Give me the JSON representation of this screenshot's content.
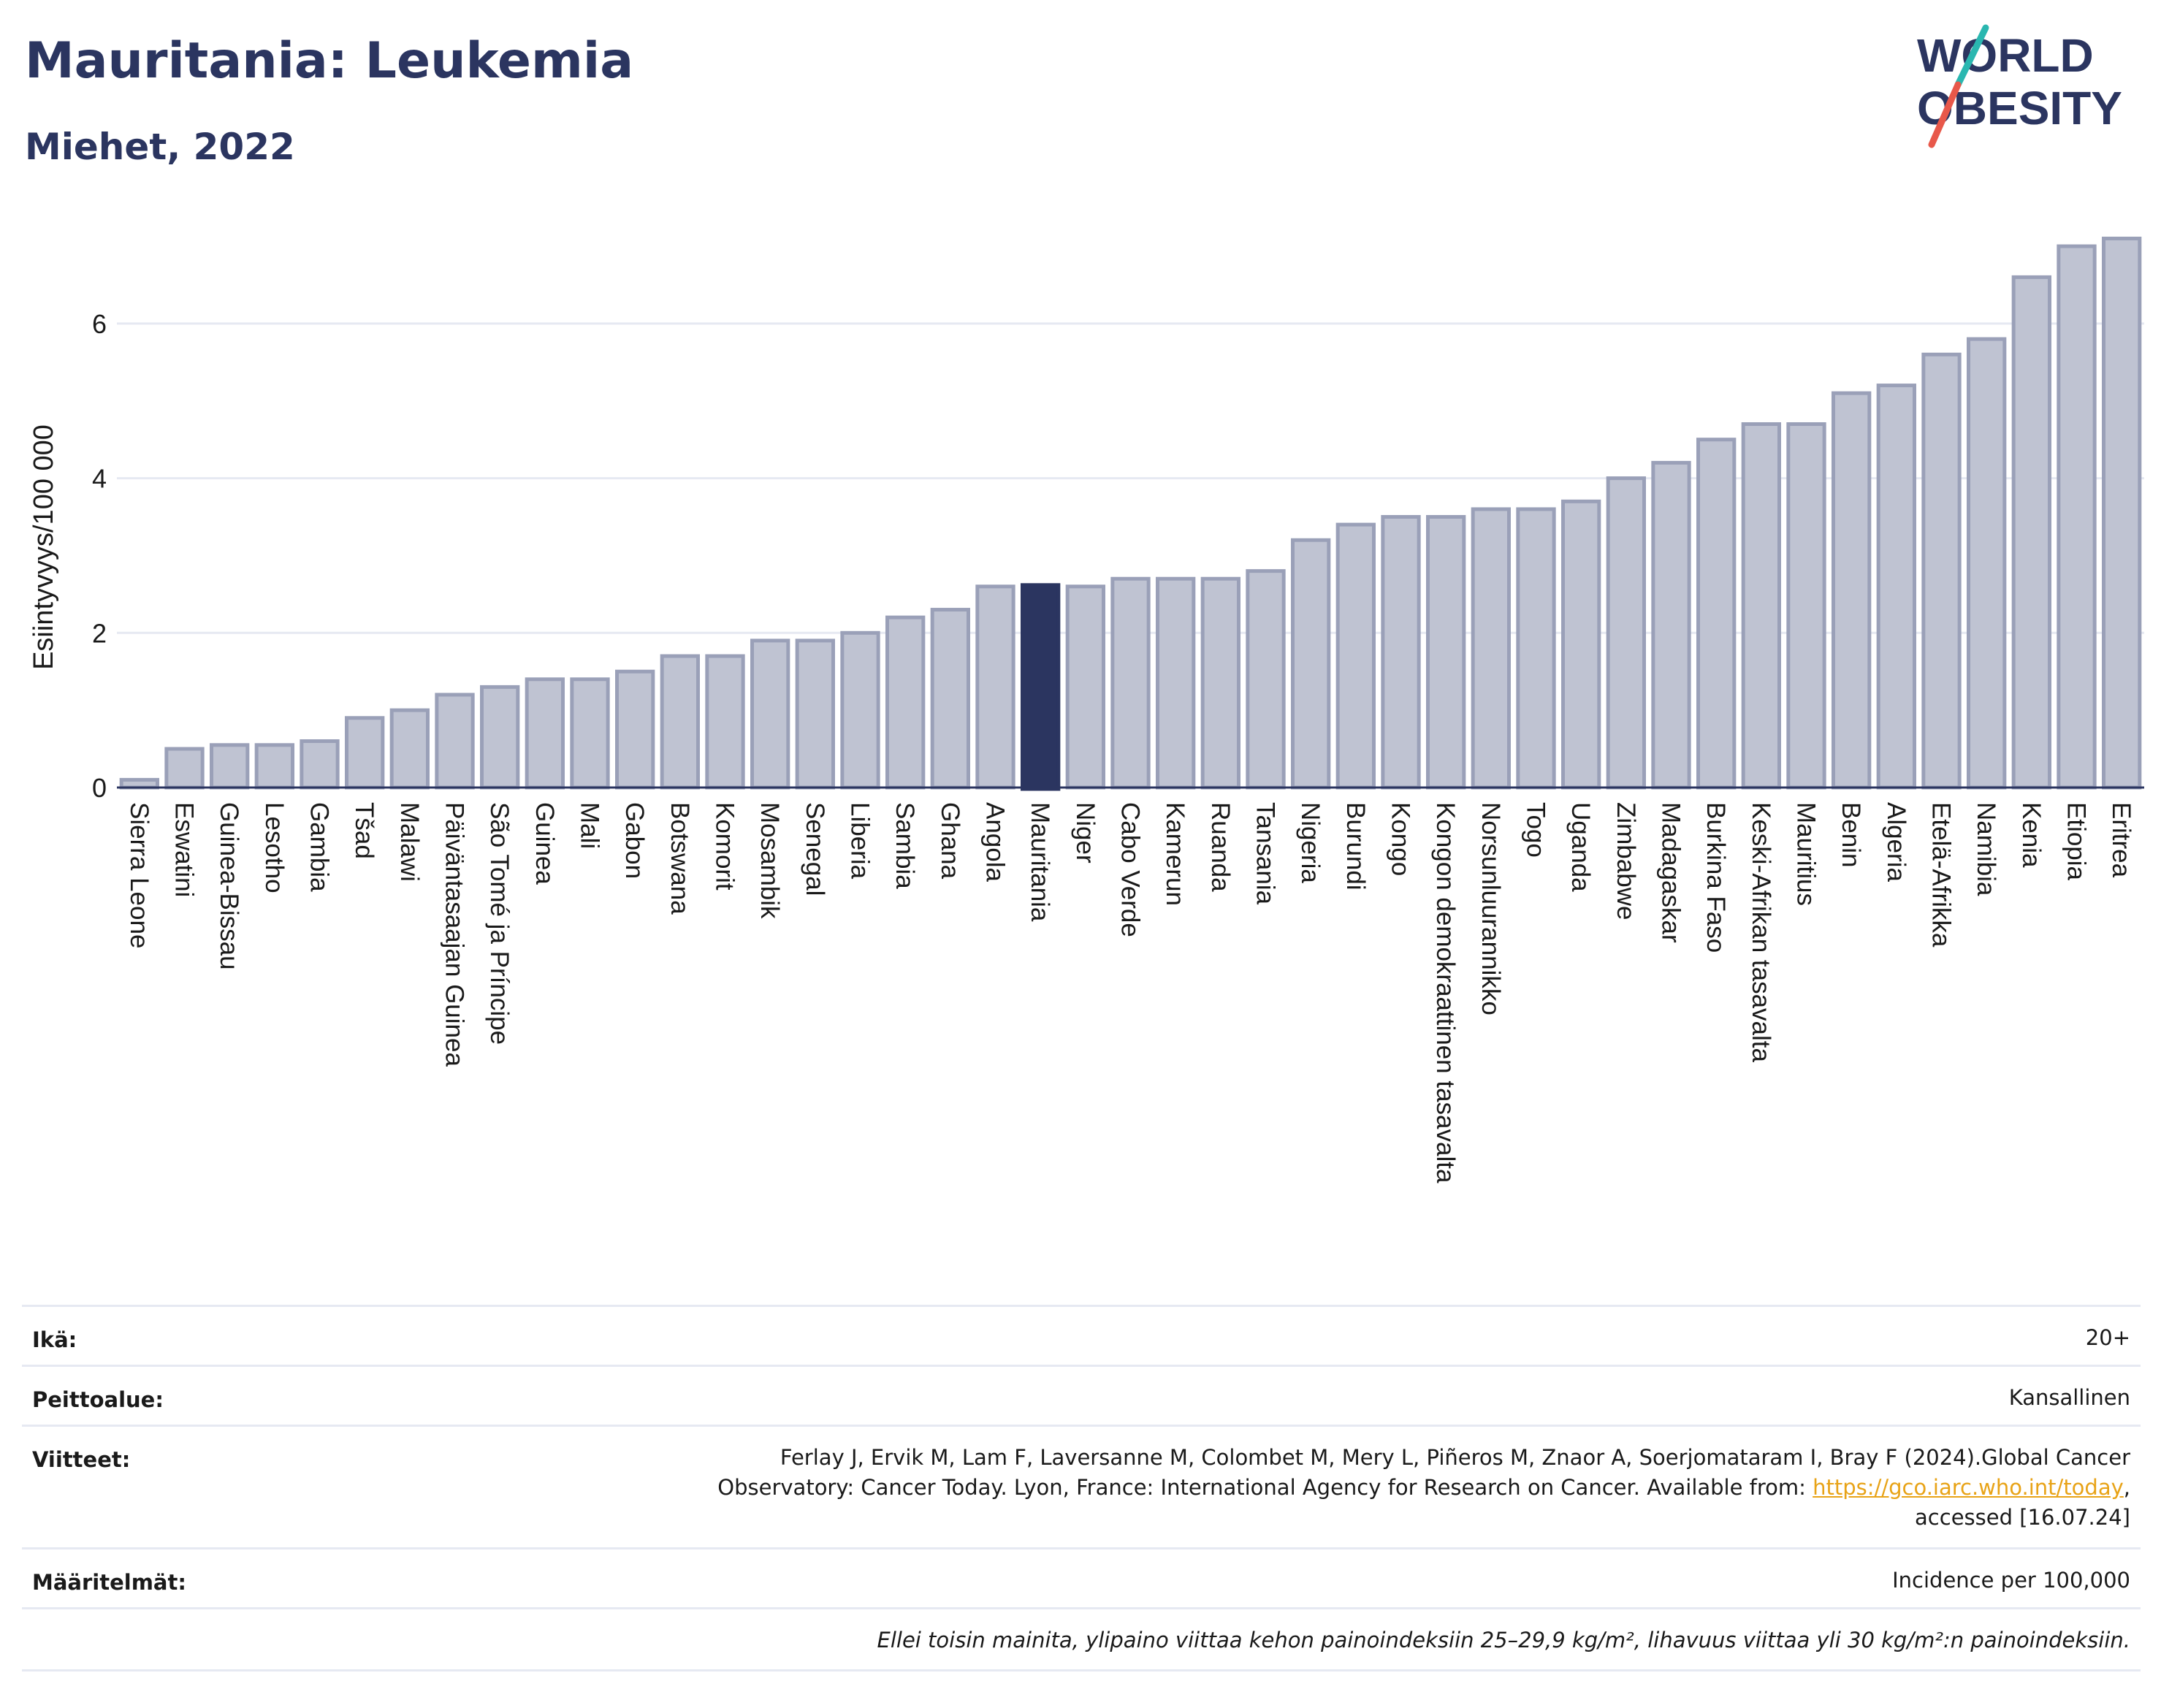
{
  "header": {
    "title": "Mauritania: Leukemia",
    "subtitle": "Miehet, 2022"
  },
  "logo": {
    "line1": "WORLD",
    "line2": "OBESITY",
    "colors": {
      "text": "#2b3560",
      "stripe_top": "#2ab7b0",
      "stripe_bottom": "#e8584a"
    }
  },
  "colors": {
    "bar": "#bfc3d2",
    "bar_edge": "#9aa0b8",
    "highlight": "#2b3560",
    "grid": "#e6e9f2",
    "axis_text": "#1a1a1a"
  },
  "chart_data": {
    "type": "bar",
    "title": "Mauritania: Leukemia",
    "subtitle": "Miehet, 2022",
    "xlabel": "",
    "ylabel": "Esiintyvyys/100 000",
    "ylim": [
      0,
      7.35
    ],
    "yticks": [
      0,
      2,
      4,
      6
    ],
    "grid": true,
    "highlight": "Mauritania",
    "categories": [
      "Sierra Leone",
      "Eswatini",
      "Guinea-Bissau",
      "Lesotho",
      "Gambia",
      "Tšad",
      "Malawi",
      "Päiväntasaajan Guinea",
      "São Tomé ja Príncipe",
      "Guinea",
      "Mali",
      "Gabon",
      "Botswana",
      "Komorit",
      "Mosambik",
      "Senegal",
      "Liberia",
      "Sambia",
      "Ghana",
      "Angola",
      "Mauritania",
      "Niger",
      "Cabo Verde",
      "Kamerun",
      "Ruanda",
      "Tansania",
      "Nigeria",
      "Burundi",
      "Kongo",
      "Kongon demokraattinen tasavalta",
      "Norsunluurannikko",
      "Togo",
      "Uganda",
      "Zimbabwe",
      "Madagaskar",
      "Burkina Faso",
      "Keski-Afrikan tasavalta",
      "Mauritius",
      "Benin",
      "Algeria",
      "Etelä-Afrikka",
      "Namibia",
      "Kenia",
      "Etiopia",
      "Eritrea"
    ],
    "values": [
      0.1,
      0.5,
      0.55,
      0.55,
      0.6,
      0.9,
      1.0,
      1.2,
      1.3,
      1.4,
      1.4,
      1.5,
      1.7,
      1.7,
      1.9,
      1.9,
      2.0,
      2.2,
      2.3,
      2.6,
      2.6,
      2.6,
      2.7,
      2.7,
      2.7,
      2.8,
      3.2,
      3.4,
      3.5,
      3.5,
      3.6,
      3.6,
      3.7,
      4.0,
      4.2,
      4.5,
      4.7,
      4.7,
      5.1,
      5.2,
      5.6,
      5.8,
      6.6,
      7.0,
      7.1
    ]
  },
  "info": {
    "age_label": "Ikä:",
    "age_value": "20+",
    "coverage_label": "Peittoalue:",
    "coverage_value": "Kansallinen",
    "references_label": "Viitteet:",
    "references_line1": "Ferlay J, Ervik M, Lam F, Laversanne M, Colombet M, Mery L, Piñeros M, Znaor A, Soerjomataram I, Bray F (2024).Global Cancer",
    "references_line2": "Observatory: Cancer Today. Lyon, France: International Agency for Research on Cancer. Available from: ",
    "references_link": "https://gco.iarc.who.int/today",
    "references_line2_end": ",",
    "references_line3": "accessed [16.07.24]",
    "definitions_label": "Määritelmät:",
    "definitions_value": "Incidence per 100,000",
    "note": "Ellei toisin mainita, ylipaino viittaa kehon painoindeksiin 25–29,9 kg/m², lihavuus viittaa yli 30 kg/m²:n painoindeksiin."
  }
}
